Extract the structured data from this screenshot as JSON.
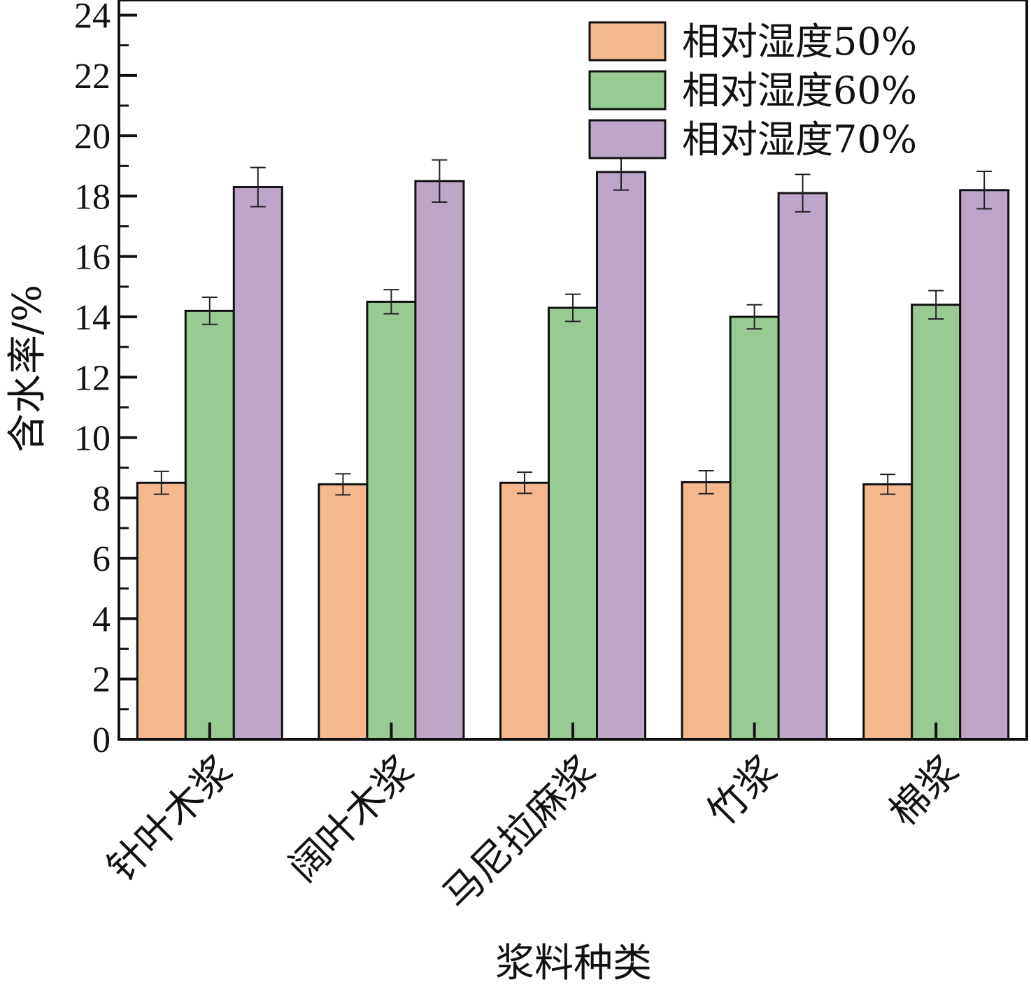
{
  "chart_data": {
    "type": "bar",
    "xlabel": "浆料种类",
    "ylabel": "含水率/%",
    "ylim": [
      0,
      24.5
    ],
    "yticks": [
      0,
      2,
      4,
      6,
      8,
      10,
      12,
      14,
      16,
      18,
      20,
      22,
      24
    ],
    "categories": [
      "针叶木浆",
      "阔叶木浆",
      "马尼拉麻浆",
      "竹浆",
      "棉浆"
    ],
    "series": [
      {
        "name": "相对湿度50%",
        "color": "#F5B78E",
        "values": [
          8.5,
          8.45,
          8.5,
          8.52,
          8.45
        ],
        "errors": [
          0.38,
          0.35,
          0.35,
          0.38,
          0.33
        ]
      },
      {
        "name": "相对湿度60%",
        "color": "#98CB91",
        "values": [
          14.2,
          14.5,
          14.3,
          14.0,
          14.4
        ],
        "errors": [
          0.45,
          0.4,
          0.45,
          0.4,
          0.47
        ]
      },
      {
        "name": "相对湿度70%",
        "color": "#BEA6C9",
        "values": [
          18.3,
          18.5,
          18.8,
          18.1,
          18.2
        ],
        "errors": [
          0.65,
          0.7,
          0.6,
          0.62,
          0.62
        ]
      }
    ],
    "legend_position": "top-right",
    "grid": false
  }
}
